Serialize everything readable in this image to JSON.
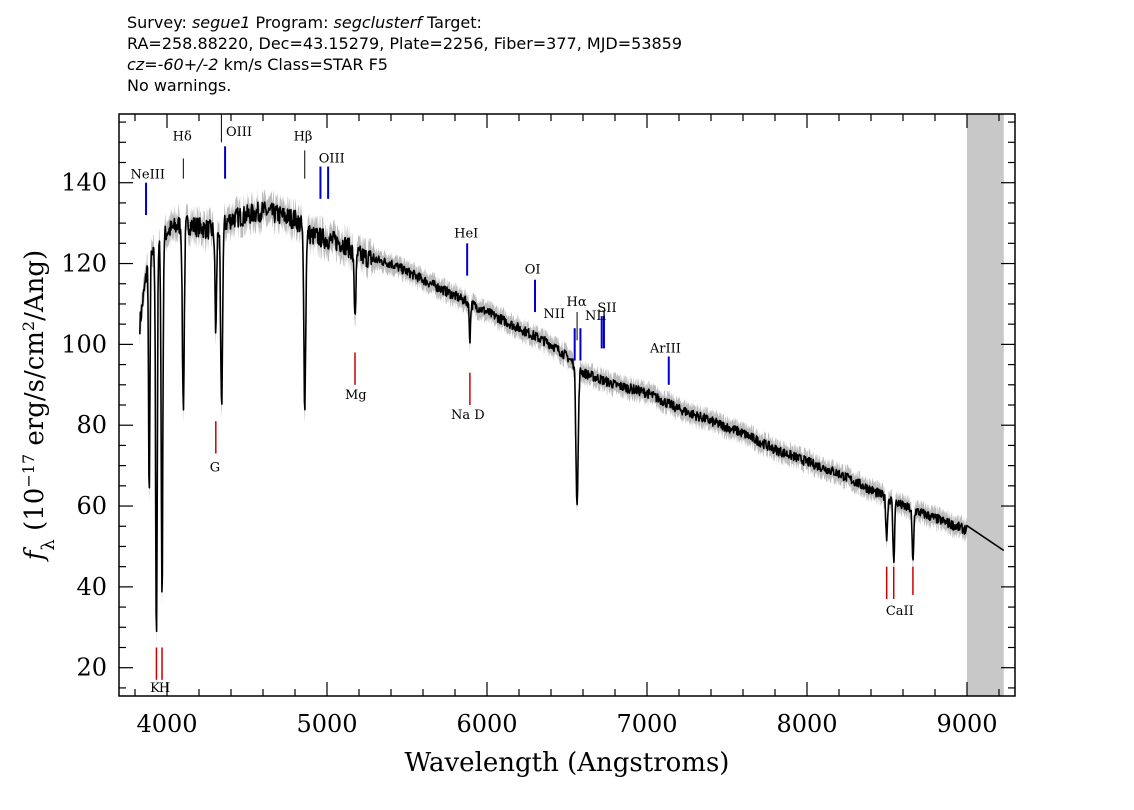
{
  "header": {
    "line1_prefix": "Survey: ",
    "survey": "segue1",
    "line1_mid": " Program: ",
    "program": "segclusterf",
    "line1_suffix": " Target:",
    "line2": "RA=258.88220, Dec=43.15279, Plate=2256, Fiber=377, MJD=53859",
    "cz": "cz=-60+/-2",
    "line3_suffix": " km/s Class=STAR F5",
    "line4": "No warnings."
  },
  "chart_data": {
    "type": "line",
    "xlabel": "Wavelength (Angstroms)",
    "ylabel": "fλ (10⁻¹⁷ erg/s/cm²/Ang)",
    "xlim": [
      3700,
      9300
    ],
    "ylim": [
      13,
      157
    ],
    "xticks": [
      4000,
      5000,
      6000,
      7000,
      8000,
      9000
    ],
    "yticks": [
      20,
      40,
      60,
      80,
      100,
      120,
      140
    ],
    "masked_region": [
      9000,
      9230
    ],
    "colors": {
      "flux": "#000000",
      "error_band": "#bbbbbb",
      "emission": "#0000cc",
      "absorption": "#cc0000",
      "mask": "#c8c8c8"
    },
    "continuum": [
      [
        3830,
        105
      ],
      [
        3880,
        120
      ],
      [
        3950,
        124
      ],
      [
        4000,
        128
      ],
      [
        4100,
        130
      ],
      [
        4200,
        129
      ],
      [
        4300,
        128
      ],
      [
        4400,
        131
      ],
      [
        4500,
        132
      ],
      [
        4600,
        133
      ],
      [
        4700,
        132
      ],
      [
        4800,
        131
      ],
      [
        4900,
        127
      ],
      [
        5000,
        126
      ],
      [
        5100,
        125
      ],
      [
        5200,
        122
      ],
      [
        5400,
        120
      ],
      [
        5600,
        116
      ],
      [
        5800,
        112
      ],
      [
        6000,
        108
      ],
      [
        6200,
        104
      ],
      [
        6400,
        100
      ],
      [
        6500,
        97
      ],
      [
        6600,
        93
      ],
      [
        6800,
        90
      ],
      [
        7000,
        88
      ],
      [
        7200,
        84
      ],
      [
        7400,
        81
      ],
      [
        7600,
        78
      ],
      [
        7800,
        74
      ],
      [
        8000,
        71
      ],
      [
        8200,
        68
      ],
      [
        8400,
        64
      ],
      [
        8600,
        60
      ],
      [
        8800,
        57
      ],
      [
        9000,
        54
      ],
      [
        9230,
        49
      ]
    ],
    "absorption_features": [
      {
        "name": "K",
        "x": 3934,
        "depth": 95,
        "width": 5
      },
      {
        "name": "H",
        "x": 3969,
        "depth": 88,
        "width": 5
      },
      {
        "name": "H8",
        "x": 3889,
        "depth": 60,
        "width": 4
      },
      {
        "name": "H-delta",
        "x": 4102,
        "depth": 45,
        "width": 6
      },
      {
        "name": "G",
        "x": 4305,
        "depth": 25,
        "width": 5
      },
      {
        "name": "H-gamma",
        "x": 4341,
        "depth": 45,
        "width": 6
      },
      {
        "name": "H-beta",
        "x": 4861,
        "depth": 43,
        "width": 6
      },
      {
        "name": "Mg",
        "x": 5175,
        "depth": 15,
        "width": 6
      },
      {
        "name": "Na D",
        "x": 5893,
        "depth": 9,
        "width": 4
      },
      {
        "name": "H-alpha",
        "x": 6563,
        "depth": 34,
        "width": 7
      },
      {
        "name": "CaII 8498",
        "x": 8498,
        "depth": 10,
        "width": 5
      },
      {
        "name": "CaII 8542",
        "x": 8542,
        "depth": 15,
        "width": 5
      },
      {
        "name": "CaII 8662",
        "x": 8662,
        "depth": 13,
        "width": 5
      }
    ],
    "emission_lines": [
      {
        "label": "NeIII",
        "x": 3869,
        "y_top": 140,
        "y_bottom": 132
      },
      {
        "label": "OIII",
        "x": 4363,
        "y_top": 149,
        "y_bottom": 141
      },
      {
        "label": "OIII",
        "x": 4959,
        "y_top": 144,
        "y_bottom": 136
      },
      {
        "label": "OIII",
        "x": 5007,
        "y_top": 144,
        "y_bottom": 136
      },
      {
        "label": "HeI",
        "x": 5876,
        "y_top": 125,
        "y_bottom": 117
      },
      {
        "label": "OI",
        "x": 6300,
        "y_top": 116,
        "y_bottom": 108
      },
      {
        "label": "NII",
        "x": 6548,
        "y_top": 104,
        "y_bottom": 96
      },
      {
        "label": "NII",
        "x": 6584,
        "y_top": 104,
        "y_bottom": 96
      },
      {
        "label": "SII",
        "x": 6717,
        "y_top": 107,
        "y_bottom": 99
      },
      {
        "label": "SII",
        "x": 6731,
        "y_top": 107,
        "y_bottom": 99
      },
      {
        "label": "ArIII",
        "x": 7136,
        "y_top": 97,
        "y_bottom": 90
      }
    ],
    "balmer_marks": [
      {
        "x": 4102,
        "y_top": 146,
        "y_bottom": 141
      },
      {
        "x": 4340,
        "y_top": 157,
        "y_bottom": 150
      },
      {
        "x": 4861,
        "y_top": 148,
        "y_bottom": 141
      },
      {
        "x": 6563,
        "y_top": 108,
        "y_bottom": 101
      }
    ],
    "absorption_marks": [
      {
        "x": 3934,
        "y_top": 25,
        "y_bottom": 17
      },
      {
        "x": 3969,
        "y_top": 25,
        "y_bottom": 17
      },
      {
        "x": 4305,
        "y_top": 81,
        "y_bottom": 73
      },
      {
        "x": 5175,
        "y_top": 98,
        "y_bottom": 90
      },
      {
        "x": 5893,
        "y_top": 93,
        "y_bottom": 85
      },
      {
        "x": 8498,
        "y_top": 45,
        "y_bottom": 37
      },
      {
        "x": 8542,
        "y_top": 45,
        "y_bottom": 37
      },
      {
        "x": 8662,
        "y_top": 45,
        "y_bottom": 38
      }
    ],
    "line_labels": [
      {
        "text": "NeIII",
        "x": 3880,
        "y": 141
      },
      {
        "text": "Hδ",
        "x": 4095,
        "y": 150.5
      },
      {
        "text": "OIII",
        "x": 4450,
        "y": 151.5
      },
      {
        "text": "Hβ",
        "x": 4850,
        "y": 150.5
      },
      {
        "text": "OIII",
        "x": 5030,
        "y": 145
      },
      {
        "text": "HeI",
        "x": 5870,
        "y": 126.5
      },
      {
        "text": "OI",
        "x": 6285,
        "y": 117.5
      },
      {
        "text": "Hα",
        "x": 6560,
        "y": 109.5
      },
      {
        "text": "SII",
        "x": 6750,
        "y": 108
      },
      {
        "text": "NII",
        "x": 6420,
        "y": 106.5
      },
      {
        "text": "NII",
        "x": 6680,
        "y": 106
      },
      {
        "text": "ArIII",
        "x": 7115,
        "y": 98
      },
      {
        "text": "G",
        "x": 4300,
        "y": 68.5
      },
      {
        "text": "Mg",
        "x": 5180,
        "y": 86.5
      },
      {
        "text": "Na D",
        "x": 5880,
        "y": 81.5
      },
      {
        "text": "CaII",
        "x": 8580,
        "y": 33
      },
      {
        "text": "K",
        "x": 3925,
        "y": 14
      },
      {
        "text": "H",
        "x": 3985,
        "y": 14
      }
    ]
  }
}
